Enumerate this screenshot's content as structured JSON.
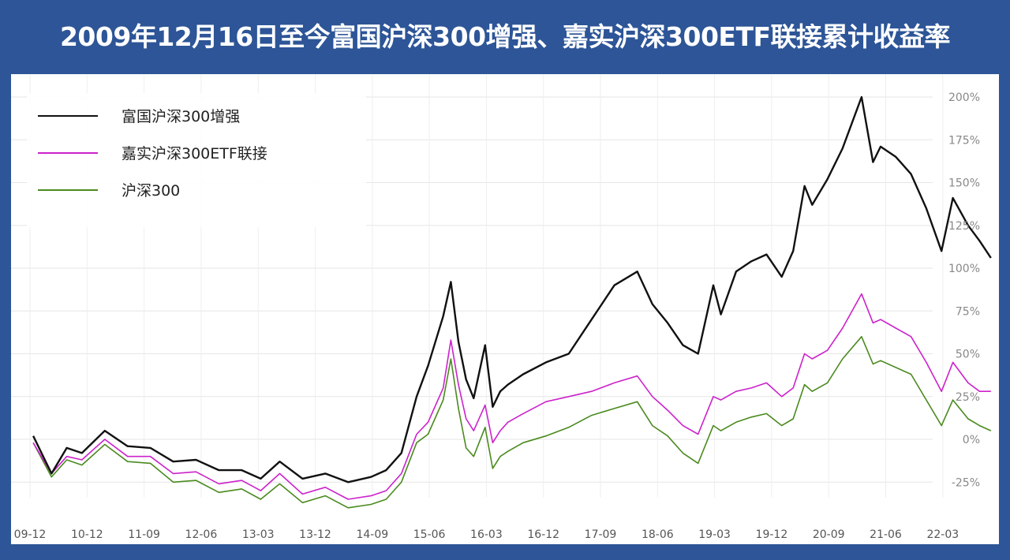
{
  "chart_data": {
    "type": "line",
    "title": "2009年12月16日至今富国沪深300增强、嘉实沪深300ETF联接累计收益率",
    "xlabel": "",
    "ylabel": "",
    "x_ticks": [
      "09-12",
      "10-12",
      "11-09",
      "12-06",
      "13-03",
      "13-12",
      "14-09",
      "15-06",
      "16-03",
      "16-12",
      "17-09",
      "18-06",
      "19-03",
      "19-12",
      "20-09",
      "21-06",
      "22-03"
    ],
    "y_ticks": [
      "200%",
      "175%",
      "150%",
      "125%",
      "100%",
      "75%",
      "50%",
      "25%",
      "0%",
      "-25%"
    ],
    "ylim": [
      -34,
      200
    ],
    "grid": true,
    "legend_position": "top-left",
    "x": [
      2009.96,
      2010.2,
      2010.4,
      2010.6,
      2010.9,
      2011.2,
      2011.5,
      2011.8,
      2012.1,
      2012.4,
      2012.7,
      2012.95,
      2013.2,
      2013.5,
      2013.8,
      2014.1,
      2014.4,
      2014.6,
      2014.8,
      2015.0,
      2015.15,
      2015.35,
      2015.45,
      2015.55,
      2015.65,
      2015.75,
      2015.9,
      2016.0,
      2016.1,
      2016.2,
      2016.4,
      2016.7,
      2017.0,
      2017.3,
      2017.6,
      2017.9,
      2018.1,
      2018.3,
      2018.5,
      2018.7,
      2018.9,
      2019.0,
      2019.2,
      2019.4,
      2019.6,
      2019.8,
      2019.95,
      2020.1,
      2020.2,
      2020.4,
      2020.6,
      2020.85,
      2021.0,
      2021.1,
      2021.3,
      2021.5,
      2021.7,
      2021.9,
      2022.05,
      2022.25,
      2022.4,
      2022.55
    ],
    "series": [
      {
        "name": "富国沪深300增强",
        "color": "#111111",
        "values": [
          2,
          -20,
          -5,
          -8,
          5,
          -4,
          -5,
          -13,
          -12,
          -18,
          -18,
          -23,
          -13,
          -23,
          -20,
          -25,
          -22,
          -18,
          -8,
          25,
          43,
          72,
          92,
          57,
          35,
          24,
          55,
          19,
          28,
          32,
          38,
          45,
          50,
          70,
          90,
          98,
          79,
          68,
          55,
          50,
          90,
          73,
          98,
          104,
          108,
          95,
          110,
          148,
          137,
          152,
          170,
          200,
          162,
          171,
          165,
          155,
          135,
          110,
          141,
          125,
          116,
          106
        ]
      },
      {
        "name": "嘉实沪深300ETF联接",
        "color": "#cc22cc",
        "values": [
          -2,
          -20,
          -10,
          -12,
          0,
          -10,
          -10,
          -20,
          -19,
          -26,
          -24,
          -30,
          -20,
          -32,
          -28,
          -35,
          -33,
          -30,
          -20,
          3,
          10,
          30,
          58,
          32,
          12,
          5,
          20,
          -2,
          5,
          10,
          15,
          22,
          25,
          28,
          33,
          37,
          25,
          17,
          8,
          3,
          25,
          23,
          28,
          30,
          33,
          25,
          30,
          50,
          47,
          52,
          65,
          85,
          68,
          70,
          65,
          60,
          45,
          28,
          45,
          33,
          28,
          28
        ]
      },
      {
        "name": "沪深300",
        "color": "#4a8a1e",
        "values": [
          -2,
          -22,
          -12,
          -15,
          -3,
          -13,
          -14,
          -25,
          -24,
          -31,
          -29,
          -35,
          -26,
          -37,
          -33,
          -40,
          -38,
          -35,
          -25,
          -2,
          3,
          23,
          47,
          18,
          -5,
          -10,
          7,
          -17,
          -10,
          -7,
          -2,
          2,
          7,
          14,
          18,
          22,
          8,
          2,
          -8,
          -14,
          8,
          5,
          10,
          13,
          15,
          8,
          12,
          32,
          28,
          33,
          47,
          60,
          44,
          46,
          42,
          38,
          23,
          8,
          23,
          12,
          8,
          5
        ]
      }
    ]
  }
}
